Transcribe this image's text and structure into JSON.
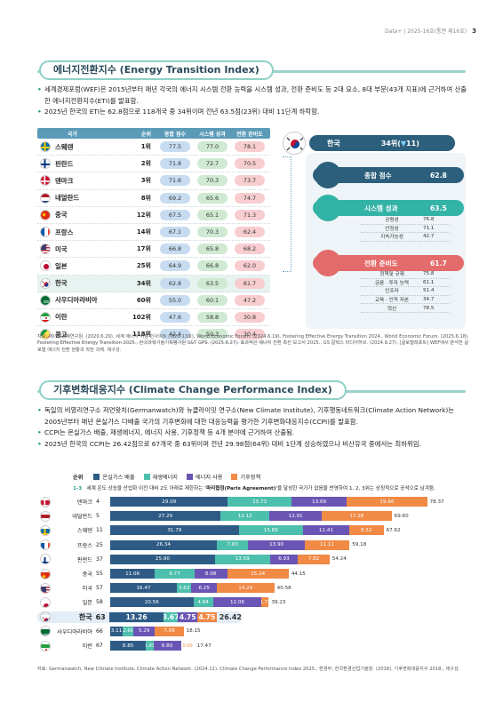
{
  "header": {
    "text": "Data+ | 2025-16호(통권 제16호)",
    "page": "3"
  },
  "eti": {
    "title": "에너지전환지수 (Energy Transition Index)",
    "bullets": [
      "세계경제포럼(WEF)은 2015년부터 매년 각국의 에너지 시스템 전환 능력을 시스템 성과, 전환 준비도 등 2대 요소, 8대 부문(43개 지표)에 근거하여 산출한 에너지전환지수(ETI)를 발표함.",
      "2025년 한국의 ETI는 62.8점으로 118개국 중 34위이며 전년 63.5점(23위) 대비 11단계 하락함."
    ],
    "table": {
      "headers": [
        "국가",
        "순위",
        "종합 점수",
        "시스템 성과",
        "전환 준비도"
      ],
      "rows": [
        {
          "country": "스웨덴",
          "rank": "1위",
          "total": "77.5",
          "system": "77.0",
          "ready": "78.1",
          "flag": "se"
        },
        {
          "country": "핀란드",
          "rank": "2위",
          "total": "71.8",
          "system": "72.7",
          "ready": "70.5",
          "flag": "fi"
        },
        {
          "country": "덴마크",
          "rank": "3위",
          "total": "71.6",
          "system": "70.3",
          "ready": "73.7",
          "flag": "dk"
        },
        {
          "country": "네덜란드",
          "rank": "8위",
          "total": "69.2",
          "system": "65.6",
          "ready": "74.7",
          "flag": "nl"
        },
        {
          "country": "중국",
          "rank": "12위",
          "total": "67.5",
          "system": "65.1",
          "ready": "71.3",
          "flag": "cn"
        },
        {
          "country": "프랑스",
          "rank": "14위",
          "total": "67.1",
          "system": "70.3",
          "ready": "62.4",
          "flag": "fr"
        },
        {
          "country": "미국",
          "rank": "17위",
          "total": "66.8",
          "system": "65.8",
          "ready": "68.2",
          "flag": "us"
        },
        {
          "country": "일본",
          "rank": "25위",
          "total": "64.9",
          "system": "66.8",
          "ready": "62.0",
          "flag": "jp"
        },
        {
          "country": "한국",
          "rank": "34위",
          "total": "62.8",
          "system": "63.5",
          "ready": "61.7",
          "flag": "kr"
        },
        {
          "country": "사우디아라비아",
          "rank": "60위",
          "total": "55.0",
          "system": "60.1",
          "ready": "47.2",
          "flag": "sa"
        },
        {
          "country": "이란",
          "rank": "102위",
          "total": "47.6",
          "system": "58.8",
          "ready": "30.8",
          "flag": "ir"
        },
        {
          "country": "콩고",
          "rank": "118위",
          "total": "42.4",
          "system": "50.3",
          "ready": "30.4",
          "flag": "cg"
        }
      ]
    },
    "korea_panel": {
      "name": "한국",
      "rank": "34위",
      "change_arrow": "▼",
      "change": "11",
      "total_label": "종합 점수",
      "total_value": "62.8",
      "system_label": "시스템 성과",
      "system_value": "63.5",
      "system_sub": [
        {
          "name": "공평성",
          "value": "76.8"
        },
        {
          "name": "안정성",
          "value": "71.1"
        },
        {
          "name": "지속가능성",
          "value": "42.7"
        }
      ],
      "ready_label": "전환 준비도",
      "ready_value": "61.7",
      "ready_sub": [
        {
          "name": "정책및 규제",
          "value": "75.8"
        },
        {
          "name": "금융 · 투자 능력",
          "value": "61.1"
        },
        {
          "name": "인프라",
          "value": "51.4"
        },
        {
          "name": "교육 · 인적 자본",
          "value": "34.7"
        },
        {
          "name": "혁신",
          "value": "78.5"
        }
      ]
    },
    "source": "자료: 에너지경제연구원. (2020.6.29). 세계 에너지 시장 인사이트 (제20-13호), World Economic Forum. (2024.6.19). Fostering Effective Energy Transition 2024., World Economic Forum. (2025.6.18). Fostering Effective Energy Transition 2025., 한국과학기술기획평가원 S&T GPS. (2025.6.27). 효과적인 에너지 전환 촉진 보고서 2025., GS 칼텍스 미디어허브. (2024.9.27). [글로벌레포트] WEF에서 분석한 글로벌 에너지 전환 현황과 착한 과제. 재구성."
  },
  "ccpi": {
    "title": "기후변화대응지수 (Climate Change Performance Index)",
    "bullets": [
      "독일의 비영리연구소 저먼왓치(Germanwatch)와 뉴클라이밋 연구소(New Climate Institute), 기후행동네트워크(Climate Action Network)는 2005년부터 매년 온실가스 다배출 국가의 기후변화에 대한 대응능력을 평가한 기후변화대응지수(CCPI)를 발표함.",
      "CCPI는 온실가스 배출, 재생에너지, 에너지 사용, 기후정책 등 4개 분야에 근거하여 산출됨.",
      "2025년 한국의 CCPI는 26.42점으로 67개국 중 63위이며 전년 29.98점(64위) 대비 1단계 상승하였으나 비산유국 중에서는 최하위임."
    ],
    "chart_data": {
      "type": "bar",
      "stacked": true,
      "orientation": "horizontal",
      "header_rank": "순위",
      "header_top_ranks": "1-3",
      "note_prefix": "세계 온도 상승을 산업화 이전 대비 2도 아래로 제한하는 ",
      "note_bold": "'파리협정(Paris Agreement)'",
      "note_suffix": "을 달성한 국가가 없음을 반영하여 1, 2, 3위는 상징적으로 공석으로 남겨둠.",
      "legend_label": "순위",
      "series": [
        {
          "name": "온실가스 배출",
          "color": "#2e5b85"
        },
        {
          "name": "재생에너지",
          "color": "#4dbfad"
        },
        {
          "name": "에너지 사용",
          "color": "#6a55b5"
        },
        {
          "name": "기후정책",
          "color": "#f08a45"
        }
      ],
      "rows": [
        {
          "country": "덴마크",
          "rank": "4",
          "flag": "dk",
          "values": [
            29.09,
            15.73,
            13.69,
            19.86
          ],
          "labels": [
            "29.09",
            "15.73",
            "13.69",
            "19.86"
          ],
          "total": "78.37"
        },
        {
          "country": "네덜란드",
          "rank": "5",
          "flag": "nl",
          "values": [
            27.29,
            12.12,
            12.91,
            17.28
          ],
          "labels": [
            "27.29",
            "12.12",
            "12.91",
            "17.28"
          ],
          "total": "69.60"
        },
        {
          "country": "스웨덴",
          "rank": "11",
          "flag": "se",
          "values": [
            31.79,
            15.89,
            11.41,
            8.52
          ],
          "labels": [
            "31.79",
            "15.89",
            "11.41",
            "8.52"
          ],
          "total": "67.62"
        },
        {
          "country": "프랑스",
          "rank": "25",
          "flag": "fr",
          "values": [
            26.34,
            7.83,
            13.9,
            11.11
          ],
          "labels": [
            "26.34",
            "7.83",
            "13.90",
            "11.11"
          ],
          "total": "59.18"
        },
        {
          "country": "핀란드",
          "rank": "37",
          "flag": "fi",
          "values": [
            25.9,
            13.59,
            6.93,
            7.82
          ],
          "labels": [
            "25.90",
            "13.59",
            "6.93",
            "7.82"
          ],
          "total": "54.24"
        },
        {
          "country": "중국",
          "rank": "55",
          "flag": "cn",
          "values": [
            11.06,
            9.77,
            8.08,
            15.24
          ],
          "labels": [
            "11.06",
            "9.77",
            "8.08",
            "15.24"
          ],
          "total": "44.15"
        },
        {
          "country": "미국",
          "rank": "57",
          "flag": "us",
          "values": [
            16.47,
            3.63,
            6.25,
            14.24
          ],
          "labels": [
            "16.47",
            "3.63",
            "6.25",
            "14.24"
          ],
          "total": "40.58"
        },
        {
          "country": "일본",
          "rank": "58",
          "flag": "jp",
          "values": [
            20.56,
            4.84,
            12.06,
            1.77
          ],
          "labels": [
            "20.56",
            "4.84",
            "12.06",
            "1.77"
          ],
          "total": "39.23"
        },
        {
          "country": "한국",
          "rank": "63",
          "flag": "kr",
          "values": [
            13.26,
            3.67,
            4.75,
            4.75
          ],
          "labels": [
            "13.26",
            "3.67",
            "4.75",
            "4.75"
          ],
          "total": "26.42",
          "highlight": true
        },
        {
          "country": "사우디아라비아",
          "rank": "66",
          "flag": "sa",
          "values": [
            3.11,
            2.66,
            5.29,
            7.09
          ],
          "labels": [
            "3.11",
            "2.66",
            "5.29",
            "7.09"
          ],
          "total": "18.15"
        },
        {
          "country": "이란",
          "rank": "67",
          "flag": "ir",
          "values": [
            8.85,
            1.83,
            6.8,
            0.0
          ],
          "labels": [
            "8.85",
            "1.83",
            "6.80",
            "0.00"
          ],
          "total": "17.47"
        }
      ]
    },
    "source": "자료: Germanwatch, New Climate Institute, Climate Action Network. (2024.11). Climate Change Performance Index 2025., 환경부, 한국환경산업기술원. (2018). 기후변화대응지수 2018., 재구성."
  }
}
